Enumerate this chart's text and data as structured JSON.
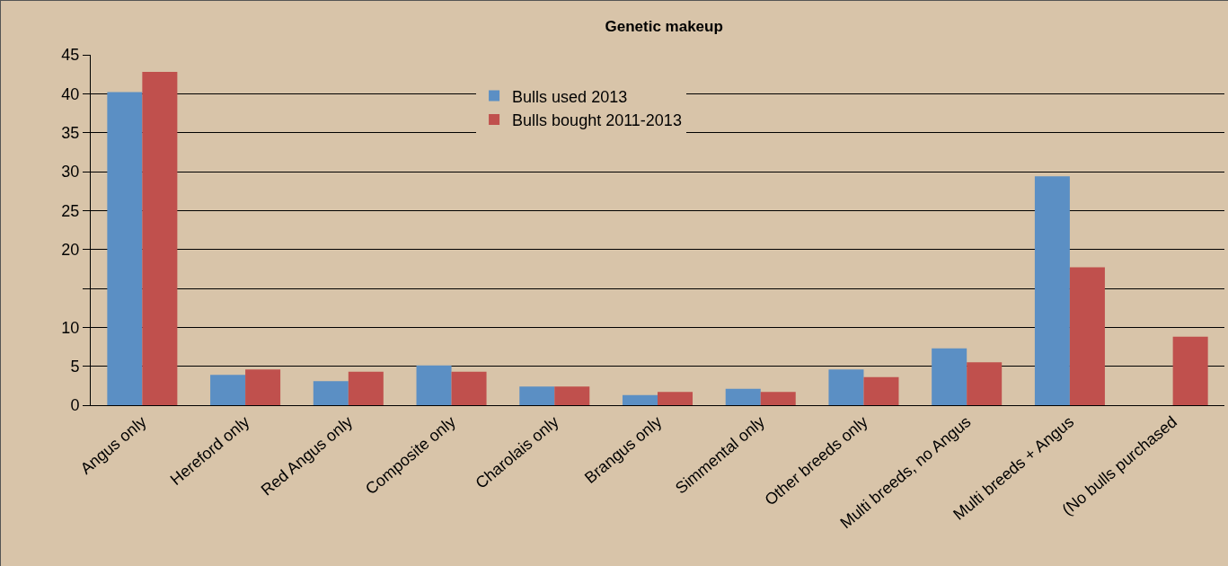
{
  "chart_data": {
    "type": "bar",
    "title": "Genetic makeup",
    "categories": [
      "Angus only",
      "Hereford only",
      "Red Angus only",
      "Composite only",
      "Charolais only",
      "Brangus only",
      "Simmental only",
      "Other breeds only",
      "Multi breeds, no Angus",
      "Multi breeds + Angus",
      "(No bulls purchased"
    ],
    "series": [
      {
        "name": "Bulls used 2013",
        "color": "#5b8fc4",
        "values": [
          40.2,
          3.9,
          3.1,
          5.1,
          2.4,
          1.3,
          2.1,
          4.6,
          7.3,
          29.4,
          null
        ]
      },
      {
        "name": "Bulls bought 2011-2013",
        "color": "#c0504d",
        "values": [
          42.8,
          4.6,
          4.3,
          4.3,
          2.4,
          1.7,
          1.7,
          3.6,
          5.5,
          17.7,
          8.8
        ]
      }
    ],
    "ylim": [
      0,
      45
    ],
    "yticks": [
      0,
      5,
      10,
      {
        "value": 15,
        "label": null
      },
      20,
      25,
      30,
      35,
      40,
      45
    ],
    "grid": "y",
    "legend": "top"
  }
}
